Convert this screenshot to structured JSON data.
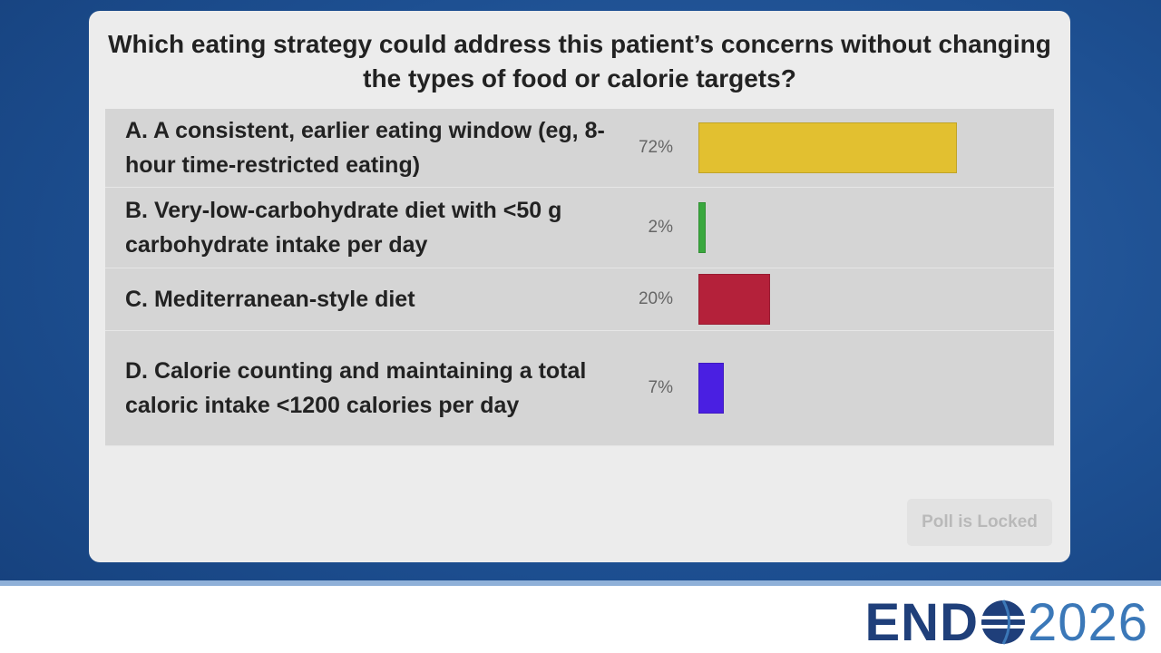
{
  "question": "Which eating strategy could address this patient’s concerns without changing the types of food or calorie targets?",
  "options": [
    {
      "text": "A. A consistent, earlier eating window (eg, 8-hour time-restricted eating)",
      "value": 72,
      "value_label": "72%",
      "color": "#e2c030"
    },
    {
      "text": "B. Very-low-carbohydrate diet with <50 g carbohydrate intake per day",
      "value": 2,
      "value_label": "2%",
      "color": "#3aa83e"
    },
    {
      "text": "C. Mediterranean-style diet",
      "value": 20,
      "value_label": "20%",
      "color": "#b4213a"
    },
    {
      "text": "D. Calorie counting and maintaining a total caloric intake <1200 calories per day",
      "value": 7,
      "value_label": "7%",
      "color": "#4a1fe2"
    }
  ],
  "button": "Poll is Locked",
  "logo": {
    "left": "END",
    "right": "2026"
  }
}
